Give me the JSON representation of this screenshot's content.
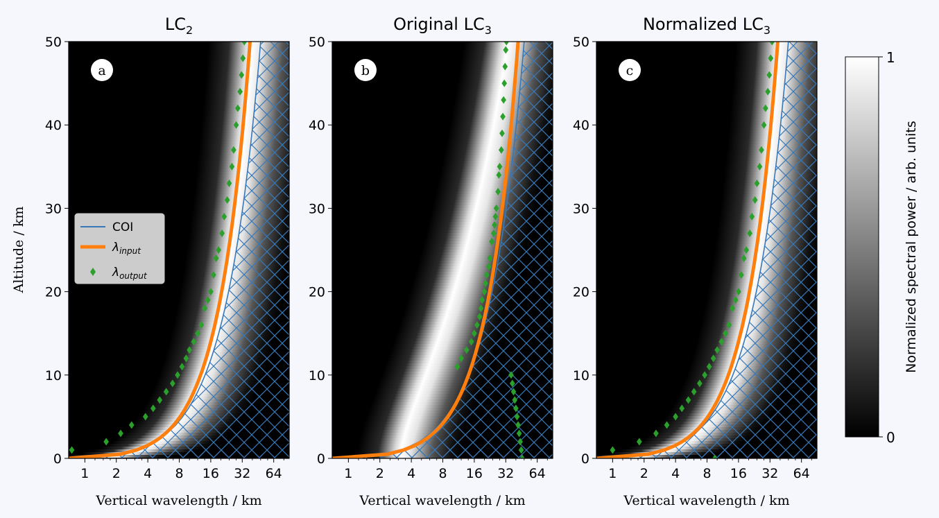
{
  "chart_data": {
    "type": "heatmap",
    "panels": [
      {
        "id": "a",
        "title": "LC",
        "title_sub": "2",
        "xlabel": "Vertical wavelength / km",
        "xscale": "log2",
        "xlim": [
          0.7,
          90
        ],
        "ylim": [
          0,
          50
        ],
        "show_ylabel": true,
        "show_legend": true,
        "ridge": {
          "lambda_0": 0.7,
          "lambda_50": 38,
          "exponent": 0.7
        },
        "lambda_input": {
          "lambda_0": 0.7,
          "lambda_50": 38,
          "exponent": 0.7
        },
        "lambda_output": [
          {
            "x": 0.75,
            "y": 1
          },
          {
            "x": 1.6,
            "y": 2
          },
          {
            "x": 2.2,
            "y": 3
          },
          {
            "x": 2.8,
            "y": 4
          },
          {
            "x": 3.8,
            "y": 5
          },
          {
            "x": 4.5,
            "y": 6
          },
          {
            "x": 5.2,
            "y": 7
          },
          {
            "x": 6.0,
            "y": 8
          },
          {
            "x": 6.9,
            "y": 9
          },
          {
            "x": 7.7,
            "y": 10
          },
          {
            "x": 8.5,
            "y": 11
          },
          {
            "x": 9.3,
            "y": 12
          },
          {
            "x": 10,
            "y": 13
          },
          {
            "x": 11,
            "y": 14
          },
          {
            "x": 12,
            "y": 15
          },
          {
            "x": 13,
            "y": 16
          },
          {
            "x": 14,
            "y": 18
          },
          {
            "x": 15,
            "y": 19
          },
          {
            "x": 16,
            "y": 20
          },
          {
            "x": 17,
            "y": 22
          },
          {
            "x": 18,
            "y": 24
          },
          {
            "x": 19,
            "y": 25
          },
          {
            "x": 20.5,
            "y": 27
          },
          {
            "x": 21.5,
            "y": 29
          },
          {
            "x": 23,
            "y": 31
          },
          {
            "x": 24,
            "y": 33
          },
          {
            "x": 25.5,
            "y": 35
          },
          {
            "x": 26.5,
            "y": 37
          },
          {
            "x": 28,
            "y": 40
          },
          {
            "x": 29,
            "y": 42
          },
          {
            "x": 30.5,
            "y": 44
          },
          {
            "x": 31.5,
            "y": 46
          },
          {
            "x": 32.5,
            "y": 48
          },
          {
            "x": 33.5,
            "y": 50
          }
        ],
        "coi": {
          "lambda_0": 1.2,
          "lambda_50": 48,
          "exponent": 0.8
        }
      },
      {
        "id": "b",
        "title": "Original LC",
        "title_sub": "3",
        "xlabel": "Vertical wavelength / km",
        "xscale": "log2",
        "xlim": [
          0.7,
          90
        ],
        "ylim": [
          0,
          50
        ],
        "show_ylabel": false,
        "show_legend": false,
        "ridge": {
          "lambda_0": 3,
          "lambda_50": 32,
          "exponent": 1.6
        },
        "lambda_input": {
          "lambda_0": 0.7,
          "lambda_50": 42,
          "exponent": 0.7
        },
        "lambda_output": [
          {
            "x": 11,
            "y": 11
          },
          {
            "x": 12,
            "y": 12
          },
          {
            "x": 13.5,
            "y": 13
          },
          {
            "x": 15,
            "y": 14
          },
          {
            "x": 16,
            "y": 15
          },
          {
            "x": 17,
            "y": 16
          },
          {
            "x": 18,
            "y": 17
          },
          {
            "x": 18.5,
            "y": 18
          },
          {
            "x": 19,
            "y": 19
          },
          {
            "x": 20,
            "y": 20
          },
          {
            "x": 20.5,
            "y": 21
          },
          {
            "x": 21,
            "y": 22
          },
          {
            "x": 22,
            "y": 23
          },
          {
            "x": 22.5,
            "y": 24
          },
          {
            "x": 23.5,
            "y": 26
          },
          {
            "x": 24.5,
            "y": 27
          },
          {
            "x": 25,
            "y": 28
          },
          {
            "x": 25.5,
            "y": 29
          },
          {
            "x": 26,
            "y": 30
          },
          {
            "x": 27,
            "y": 32
          },
          {
            "x": 27.5,
            "y": 34
          },
          {
            "x": 28,
            "y": 35
          },
          {
            "x": 29,
            "y": 37
          },
          {
            "x": 29.5,
            "y": 39
          },
          {
            "x": 30,
            "y": 41
          },
          {
            "x": 30.5,
            "y": 43
          },
          {
            "x": 31,
            "y": 45
          },
          {
            "x": 31.5,
            "y": 47
          },
          {
            "x": 32,
            "y": 49
          },
          {
            "x": 32.5,
            "y": 50
          },
          {
            "x": 36,
            "y": 10
          },
          {
            "x": 37,
            "y": 9
          },
          {
            "x": 38,
            "y": 8
          },
          {
            "x": 39,
            "y": 7
          },
          {
            "x": 40,
            "y": 6
          },
          {
            "x": 41,
            "y": 5
          },
          {
            "x": 42,
            "y": 4
          },
          {
            "x": 43,
            "y": 3
          },
          {
            "x": 44,
            "y": 2
          },
          {
            "x": 45,
            "y": 1
          },
          {
            "x": 46,
            "y": 0
          }
        ],
        "coi": {
          "lambda_0": 1.2,
          "lambda_50": 48,
          "exponent": 0.8
        }
      },
      {
        "id": "c",
        "title": "Normalized LC",
        "title_sub": "3",
        "xlabel": "Vertical wavelength / km",
        "xscale": "log2",
        "xlim": [
          0.7,
          90
        ],
        "ylim": [
          0,
          50
        ],
        "show_ylabel": false,
        "show_legend": false,
        "ridge": {
          "lambda_0": 0.7,
          "lambda_50": 38,
          "exponent": 0.7
        },
        "lambda_input": {
          "lambda_0": 0.7,
          "lambda_50": 38,
          "exponent": 0.7
        },
        "lambda_output": [
          {
            "x": 1.0,
            "y": 1
          },
          {
            "x": 1.8,
            "y": 2
          },
          {
            "x": 2.6,
            "y": 3
          },
          {
            "x": 3.3,
            "y": 4
          },
          {
            "x": 4.0,
            "y": 5
          },
          {
            "x": 4.6,
            "y": 6
          },
          {
            "x": 5.3,
            "y": 7
          },
          {
            "x": 6.0,
            "y": 8
          },
          {
            "x": 6.8,
            "y": 9
          },
          {
            "x": 7.6,
            "y": 10
          },
          {
            "x": 8.4,
            "y": 11
          },
          {
            "x": 9.2,
            "y": 12
          },
          {
            "x": 10,
            "y": 13
          },
          {
            "x": 11,
            "y": 14
          },
          {
            "x": 12,
            "y": 15
          },
          {
            "x": 13,
            "y": 16
          },
          {
            "x": 14,
            "y": 18
          },
          {
            "x": 15,
            "y": 19
          },
          {
            "x": 16,
            "y": 20
          },
          {
            "x": 17,
            "y": 22
          },
          {
            "x": 18,
            "y": 24
          },
          {
            "x": 19,
            "y": 25
          },
          {
            "x": 20.5,
            "y": 27
          },
          {
            "x": 21.5,
            "y": 29
          },
          {
            "x": 23,
            "y": 31
          },
          {
            "x": 24,
            "y": 33
          },
          {
            "x": 25.5,
            "y": 35
          },
          {
            "x": 26.5,
            "y": 37
          },
          {
            "x": 28,
            "y": 40
          },
          {
            "x": 29,
            "y": 42
          },
          {
            "x": 30.5,
            "y": 44
          },
          {
            "x": 31.5,
            "y": 46
          },
          {
            "x": 32.5,
            "y": 48
          },
          {
            "x": 33.5,
            "y": 50
          },
          {
            "x": 9.5,
            "y": 0
          }
        ],
        "coi": {
          "lambda_0": 1.2,
          "lambda_50": 48,
          "exponent": 0.8
        }
      }
    ],
    "shared": {
      "ylabel": "Altitude / km",
      "xticks": [
        1,
        2,
        4,
        8,
        16,
        32,
        64
      ],
      "xtick_labels": [
        "1",
        "2",
        "4",
        "8",
        "16",
        "32",
        "64"
      ],
      "yticks": [
        0,
        10,
        20,
        30,
        40,
        50
      ],
      "ytick_labels": [
        "0",
        "10",
        "20",
        "30",
        "40",
        "50"
      ]
    },
    "legend": {
      "placement": "center-left",
      "entries": [
        {
          "label": "COI",
          "marker": "line",
          "color": "#3878b8"
        },
        {
          "label": "λ",
          "sub": "input",
          "marker": "thick-line",
          "color": "#ff7f0e"
        },
        {
          "label": "λ",
          "sub": "output",
          "marker": "diamond",
          "color": "#2ca02c"
        }
      ]
    },
    "colorbar": {
      "label": "Normalized spectral power / arb. units",
      "min_label": "0",
      "max_label": "1",
      "colormap": "gray"
    },
    "colors": {
      "lambda_input": "#ff7f0e",
      "lambda_output": "#2ca02c",
      "coi": "#3878b8",
      "background": "#f5f7fd"
    }
  }
}
